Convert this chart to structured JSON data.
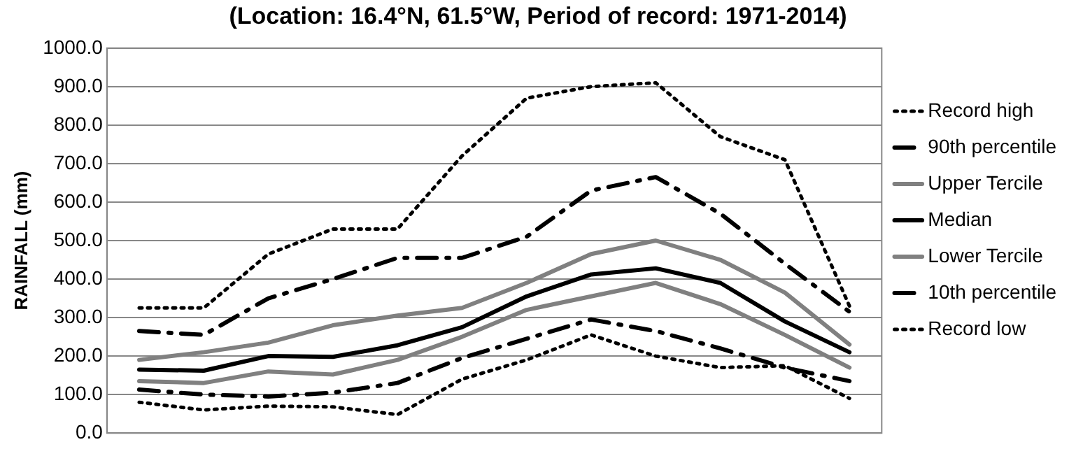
{
  "chart_data": {
    "type": "line",
    "title": "(Location: 16.4°N, 61.5°W, Period of record: 1971-2014)",
    "ylabel": "RAINFALL (mm)",
    "categories": [
      null,
      null,
      null,
      null,
      null,
      null,
      null,
      null,
      null,
      null,
      null,
      null
    ],
    "series": [
      {
        "name": "Record high",
        "color": "#000000",
        "line_style": "dotted",
        "values": [
          325,
          325,
          465,
          530,
          530,
          720,
          870,
          900,
          910,
          770,
          710,
          330
        ]
      },
      {
        "name": "90th percentile",
        "color": "#000000",
        "line_style": "dashed",
        "values": [
          265,
          255,
          350,
          400,
          455,
          455,
          510,
          630,
          665,
          570,
          440,
          315
        ]
      },
      {
        "name": "Upper Tercile",
        "color": "#808080",
        "line_style": "solid",
        "values": [
          190,
          210,
          235,
          280,
          305,
          325,
          390,
          465,
          500,
          450,
          365,
          230
        ]
      },
      {
        "name": "Median",
        "color": "#000000",
        "line_style": "solid",
        "values": [
          165,
          162,
          200,
          198,
          228,
          275,
          355,
          412,
          428,
          390,
          290,
          210
        ]
      },
      {
        "name": "Lower Tercile",
        "color": "#808080",
        "line_style": "solid",
        "values": [
          135,
          130,
          160,
          152,
          190,
          250,
          320,
          355,
          390,
          335,
          255,
          170
        ]
      },
      {
        "name": "10th percentile",
        "color": "#000000",
        "line_style": "dashed",
        "values": [
          113,
          100,
          95,
          105,
          130,
          195,
          245,
          295,
          265,
          220,
          170,
          135
        ]
      },
      {
        "name": "Record low",
        "color": "#000000",
        "line_style": "dotted",
        "values": [
          80,
          60,
          70,
          68,
          48,
          140,
          190,
          255,
          200,
          170,
          175,
          90
        ]
      }
    ],
    "ylim": [
      0,
      1000
    ],
    "yticks": [
      {
        "value": 0,
        "label": "0.0"
      },
      {
        "value": 100,
        "label": "100.0"
      },
      {
        "value": 200,
        "label": "200.0"
      },
      {
        "value": 300,
        "label": "300.0"
      },
      {
        "value": 400,
        "label": "400.0"
      },
      {
        "value": 500,
        "label": "500.0"
      },
      {
        "value": 600,
        "label": "600.0"
      },
      {
        "value": 700,
        "label": "700.0"
      },
      {
        "value": 800,
        "label": "800.0"
      },
      {
        "value": 900,
        "label": "900.0"
      },
      {
        "value": 1000,
        "label": "1000.0"
      }
    ],
    "grid": "y",
    "legend": "right",
    "tick_labels": "y",
    "marker": "none"
  }
}
